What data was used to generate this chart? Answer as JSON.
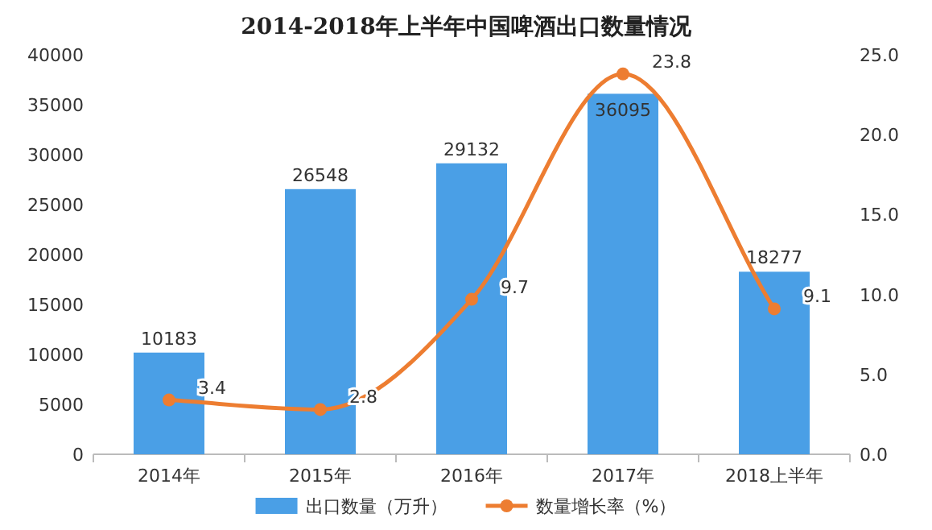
{
  "chart_data": {
    "type": "bar",
    "title": "2014-2018年上半年中国啤酒出口数量情况",
    "categories": [
      "2014年",
      "2015年",
      "2016年",
      "2017年",
      "2018上半年"
    ],
    "series": [
      {
        "name": "出口数量（万升）",
        "color": "#4a9fe6",
        "values": [
          10183,
          26548,
          29132,
          36095,
          18277
        ]
      },
      {
        "name": "数量增长率（%）",
        "color": "#ed7d31",
        "type": "line",
        "axis": "y2",
        "marker": "circle",
        "values": [
          3.4,
          2.8,
          9.7,
          23.8,
          9.1
        ]
      }
    ],
    "ylim": [
      0,
      40000
    ],
    "yticks": [
      0,
      5000,
      10000,
      15000,
      20000,
      25000,
      30000,
      35000,
      40000
    ],
    "y2lim": [
      0,
      25
    ],
    "y2ticks": [
      {
        "value": 0,
        "label": "0.0"
      },
      {
        "value": 5,
        "label": "5.0"
      },
      {
        "value": 10,
        "label": "10.0"
      },
      {
        "value": 15,
        "label": "15.0"
      },
      {
        "value": 20,
        "label": "20.0"
      },
      {
        "value": 25,
        "label": "25.0"
      }
    ],
    "data_labels": true,
    "legend": "bottom"
  }
}
